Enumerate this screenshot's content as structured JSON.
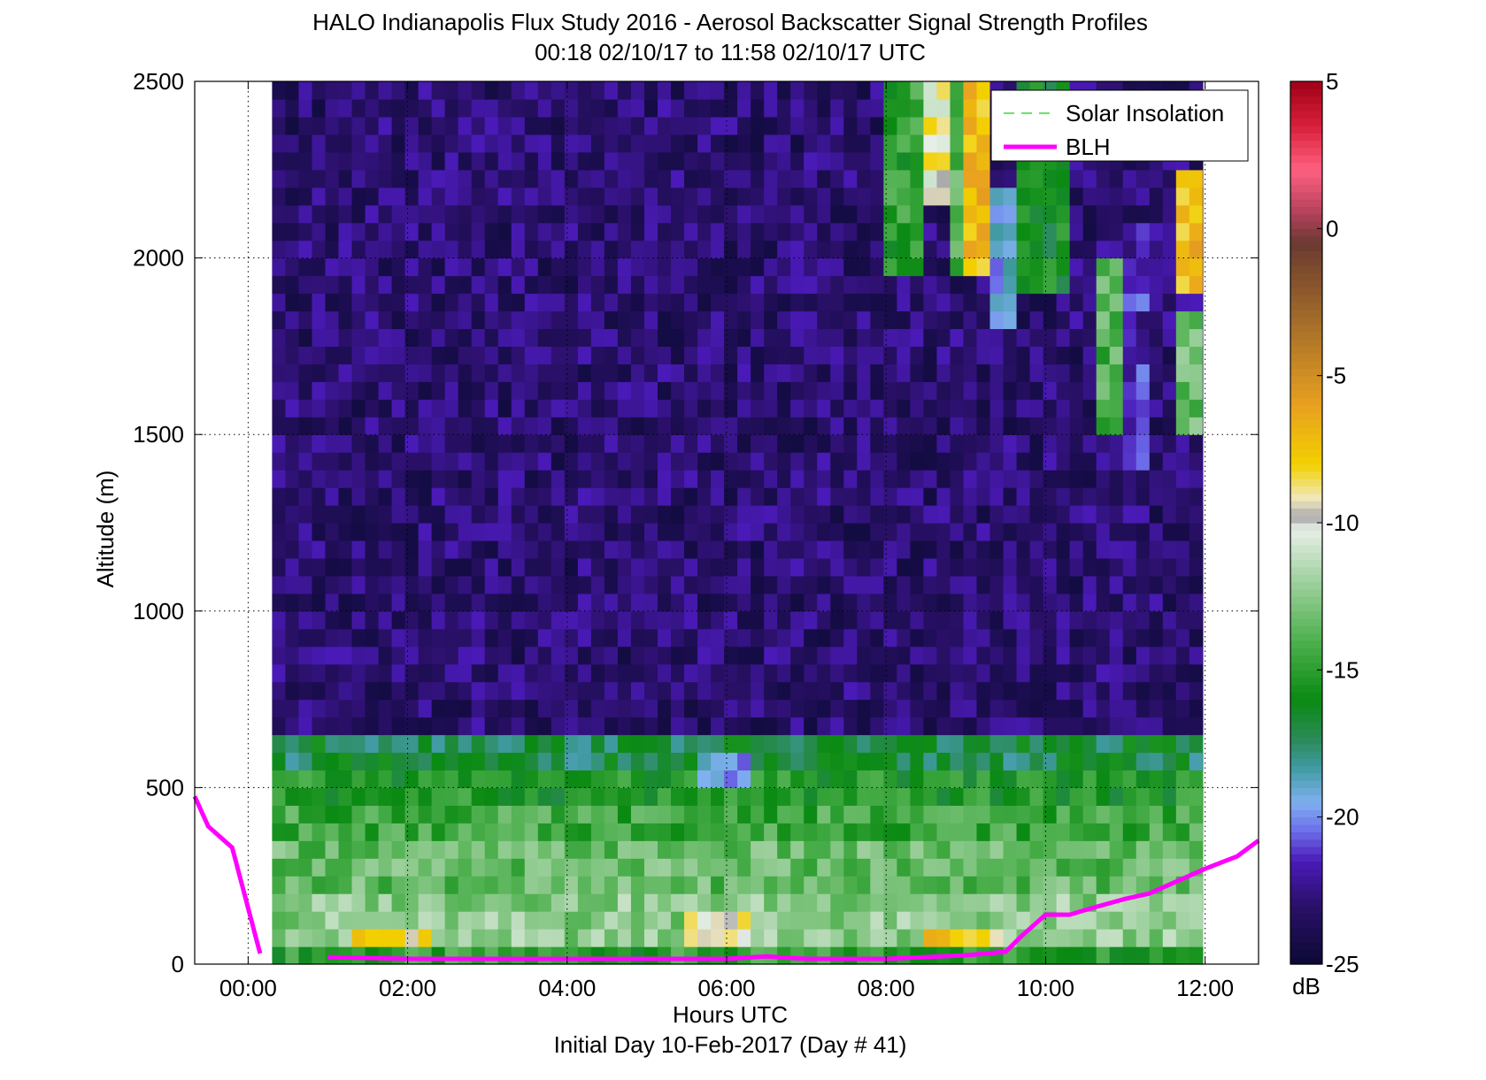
{
  "chart_data": {
    "type": "heatmap",
    "title": "HALO Indianapolis Flux Study 2016 - Aerosol Backscatter Signal Strength Profiles",
    "subtitle": "00:18 02/10/17 to 11:58 02/10/17  UTC",
    "xlabel": "Hours UTC",
    "xlabel2": "Initial Day 10-Feb-2017 (Day # 41)",
    "ylabel": "Altitude (m)",
    "xlim": [
      -0.67,
      12.67
    ],
    "ylim": [
      0,
      2500
    ],
    "x_ticks": [
      0,
      2,
      4,
      6,
      8,
      10,
      12
    ],
    "x_tick_labels": [
      "00:00",
      "02:00",
      "04:00",
      "06:00",
      "08:00",
      "10:00",
      "12:00"
    ],
    "y_ticks": [
      0,
      500,
      1000,
      1500,
      2000,
      2500
    ],
    "y_tick_labels": [
      "0",
      "500",
      "1000",
      "1500",
      "2000",
      "2500"
    ],
    "grid": true,
    "legend_position": "top-right",
    "colorbar": {
      "label": "dB",
      "range": [
        -25,
        5
      ],
      "ticks": [
        5,
        0,
        -5,
        -10,
        -15,
        -20,
        -25
      ],
      "tick_labels": [
        "5",
        "0",
        "-5",
        "-10",
        "-15",
        "-20",
        "-25"
      ],
      "colors": [
        "#0b0a35",
        "#2a1068",
        "#4a1ab8",
        "#6c6be8",
        "#7fb0f0",
        "#3f9aa0",
        "#2a8a55",
        "#0a8a12",
        "#4eb04e",
        "#9ed09e",
        "#e8efe8",
        "#a8a8a8",
        "#f0e8c0",
        "#f2d000",
        "#e8a020",
        "#a06a2a",
        "#6a3a30",
        "#b0405a",
        "#ff6080",
        "#d8203a",
        "#a00018"
      ],
      "color_stops": [
        -25,
        -23,
        -21.5,
        -20.5,
        -19.5,
        -18.3,
        -17.3,
        -16,
        -14,
        -12,
        -10.2,
        -9.8,
        -9.2,
        -8,
        -6,
        -3,
        -0.5,
        0.5,
        2,
        3.5,
        5
      ]
    },
    "series": [
      {
        "name": "Solar Insolation",
        "style": "dashed",
        "color": "#33dd33",
        "x": [],
        "y": []
      },
      {
        "name": "BLH",
        "style": "solid",
        "color": "#ff00ff",
        "x": [
          -0.67,
          -0.5,
          -0.2,
          0.15,
          0.5,
          1.0,
          2.0,
          3.0,
          4.0,
          5.0,
          6.0,
          6.5,
          7.0,
          8.0,
          8.5,
          9.0,
          9.5,
          9.7,
          10.0,
          10.3,
          10.6,
          11.0,
          11.3,
          11.6,
          12.0,
          12.4,
          12.67
        ],
        "y": [
          475,
          390,
          330,
          30,
          null,
          20,
          15,
          15,
          15,
          15,
          15,
          22,
          15,
          15,
          20,
          25,
          35,
          80,
          140,
          140,
          160,
          185,
          200,
          230,
          270,
          305,
          350
        ]
      }
    ],
    "heatmap": {
      "x_start": 0.3,
      "x_end": 11.97,
      "dx": 0.1667,
      "z_unit": "dB",
      "altitude_bands": [
        {
          "y0": 0,
          "y1": 60,
          "value": -15
        },
        {
          "y0": 60,
          "y1": 120,
          "value": -12.5
        },
        {
          "y0": 120,
          "y1": 200,
          "value": -12.5
        },
        {
          "y0": 200,
          "y1": 330,
          "value": -13.5
        },
        {
          "y0": 330,
          "y1": 450,
          "value": -14.5
        },
        {
          "y0": 450,
          "y1": 530,
          "value": -15.5
        },
        {
          "y0": 530,
          "y1": 650,
          "value": -17
        },
        {
          "y0": 650,
          "y1": 2500,
          "value": -23
        }
      ],
      "features": [
        {
          "x0": 1.3,
          "x1": 2.3,
          "y0": 40,
          "y1": 90,
          "value": -8
        },
        {
          "x0": 5.5,
          "x1": 6.3,
          "y0": 40,
          "y1": 130,
          "value": -9
        },
        {
          "x0": 8.5,
          "x1": 9.5,
          "y0": 40,
          "y1": 90,
          "value": -8
        },
        {
          "x0": 8.0,
          "x1": 8.5,
          "y0": 1950,
          "y1": 2500,
          "value": -15
        },
        {
          "x0": 8.5,
          "x1": 8.8,
          "y0": 2150,
          "y1": 2500,
          "value": -9.5
        },
        {
          "x0": 8.8,
          "x1": 9.0,
          "y0": 1950,
          "y1": 2500,
          "value": -14
        },
        {
          "x0": 9.0,
          "x1": 9.3,
          "y0": 1950,
          "y1": 2500,
          "value": -7
        },
        {
          "x0": 9.3,
          "x1": 9.7,
          "y0": 1800,
          "y1": 2200,
          "value": -19.5
        },
        {
          "x0": 9.7,
          "x1": 10.3,
          "y0": 1900,
          "y1": 2500,
          "value": -16
        },
        {
          "x0": 10.6,
          "x1": 10.9,
          "y0": 1500,
          "y1": 2000,
          "value": -14
        },
        {
          "x0": 10.9,
          "x1": 11.3,
          "y0": 1400,
          "y1": 2100,
          "value": -21.5
        },
        {
          "x0": 11.7,
          "x1": 12.0,
          "y0": 1900,
          "y1": 2250,
          "value": -7
        },
        {
          "x0": 11.7,
          "x1": 12.0,
          "y0": 1500,
          "y1": 1850,
          "value": -13.5
        },
        {
          "x0": 5.7,
          "x1": 6.3,
          "y0": 480,
          "y1": 620,
          "value": -20
        }
      ]
    }
  }
}
